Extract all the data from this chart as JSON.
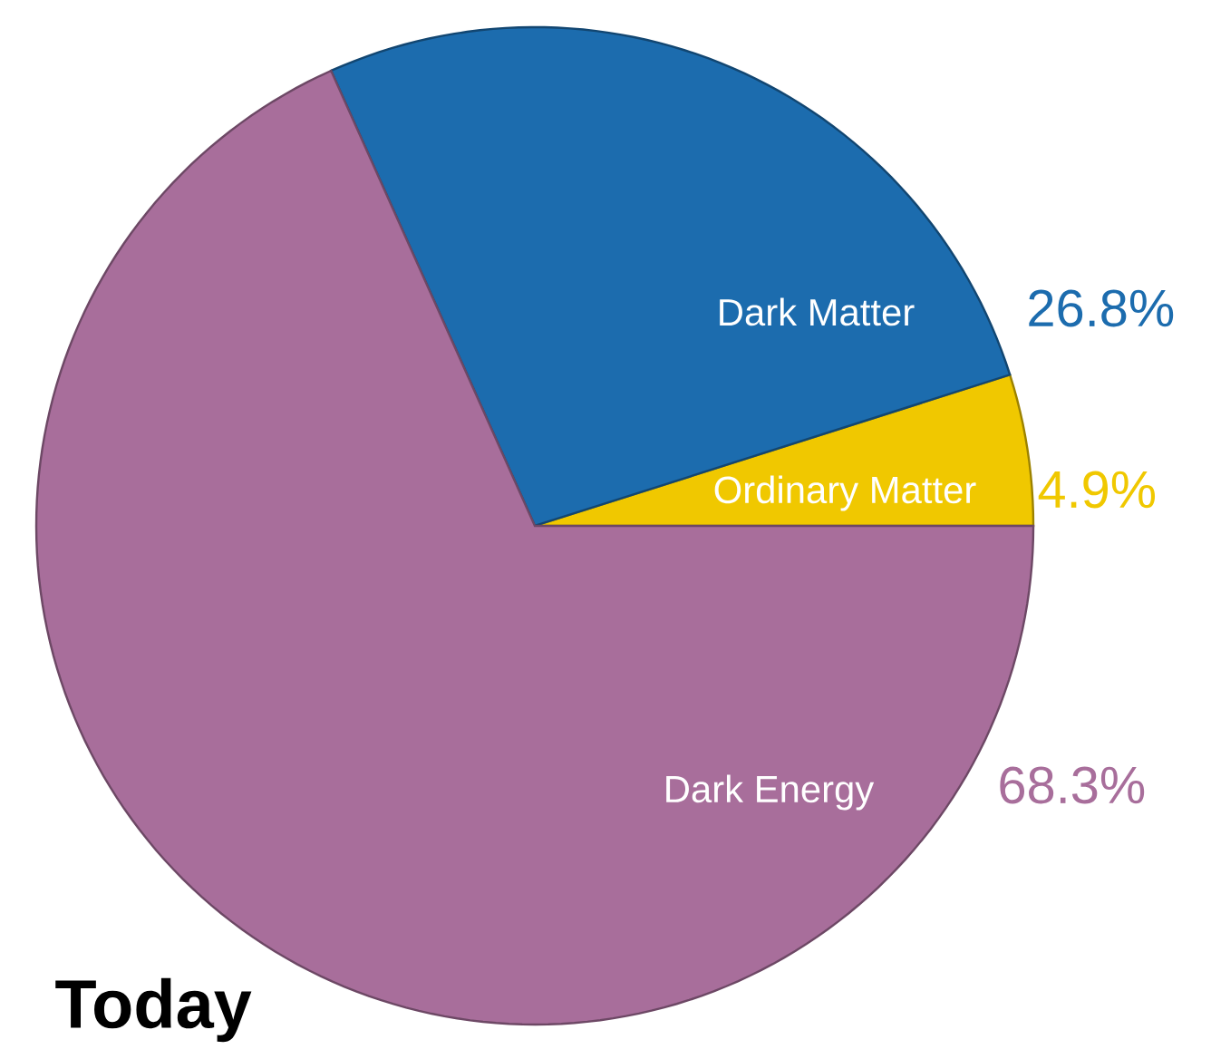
{
  "chart_data": {
    "type": "pie",
    "title": "Today",
    "categories": [
      "Ordinary Matter",
      "Dark Matter",
      "Dark Energy"
    ],
    "values": [
      4.9,
      26.8,
      68.3
    ],
    "value_labels": [
      "4.9%",
      "26.8%",
      "68.3%"
    ],
    "colors": [
      "#f0c800",
      "#1c6cae",
      "#a86e9b"
    ]
  }
}
